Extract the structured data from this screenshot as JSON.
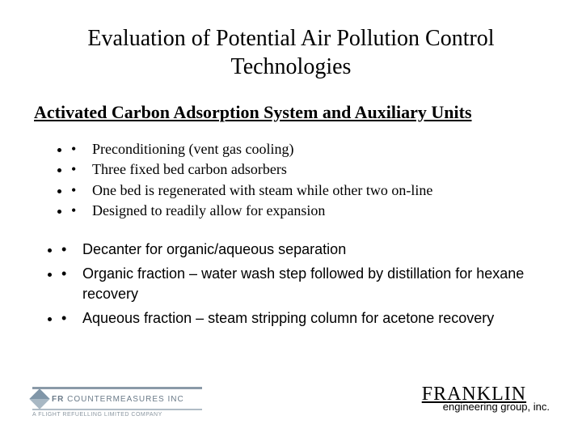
{
  "title": "Evaluation of Potential Air Pollution Control Technologies",
  "subtitle": "Activated Carbon Adsorption System and Auxiliary Units",
  "group1": {
    "items": [
      "Preconditioning (vent gas cooling)",
      "Three fixed bed carbon adsorbers",
      "One bed is regenerated with steam while other two on-line",
      "Designed to readily allow for expansion"
    ]
  },
  "group2": {
    "items": [
      "Decanter for organic/aqueous separation",
      "Organic fraction – water wash step followed by distillation for hexane recovery",
      "Aqueous fraction – steam stripping column for acetone recovery"
    ]
  },
  "footer": {
    "left_brand_bold": "FR",
    "left_brand_rest": " COUNTERMEASURES INC",
    "left_sub": "A FLIGHT REFUELLING LIMITED COMPANY",
    "right_main": "FRANKLIN",
    "right_sub": "engineering group, inc."
  },
  "colors": {
    "text": "#000000",
    "background": "#ffffff",
    "logo_bar": "#8a9aa8",
    "logo_text": "#6a7a88"
  },
  "typography": {
    "title_fontsize": 28,
    "subtitle_fontsize": 22,
    "bullet_fontsize": 18,
    "serif_family": "Times New Roman",
    "sans_family": "Arial"
  }
}
